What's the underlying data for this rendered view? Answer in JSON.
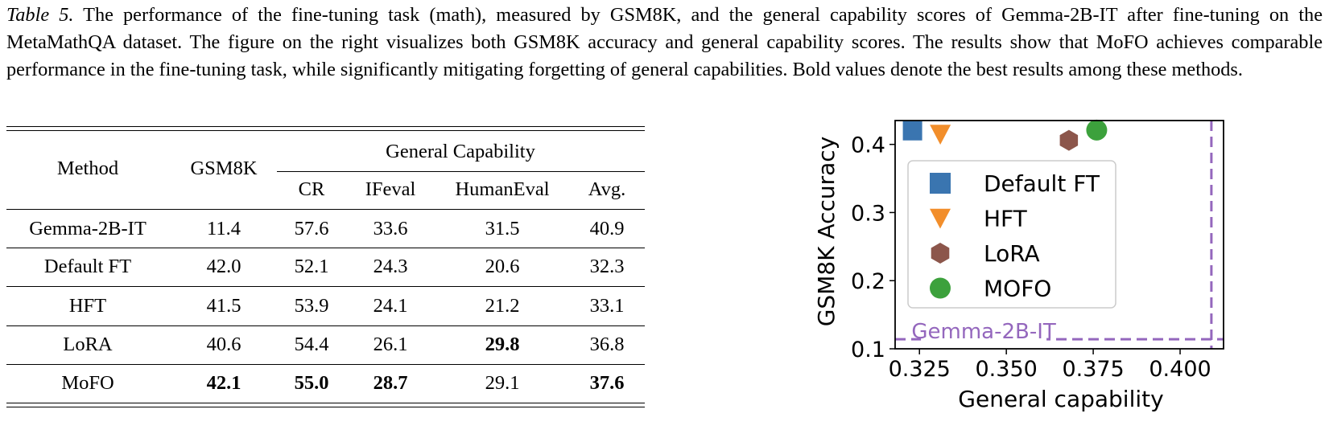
{
  "caption": {
    "label": "Table 5.",
    "text": " The performance of the fine-tuning task (math), measured by GSM8K, and the general capability scores of Gemma-2B-IT after fine-tuning on the MetaMathQA dataset. The figure on the right visualizes both GSM8K accuracy and general capability scores. The results show that MoFO achieves comparable performance in the fine-tuning task, while significantly mitigating forgetting of general capabilities. Bold values denote the best results among these methods."
  },
  "table": {
    "headers": {
      "method": "Method",
      "gsm8k": "GSM8K",
      "group": "General Capability",
      "cr": "CR",
      "ifeval": "IFeval",
      "humaneval": "HumanEval",
      "avg": "Avg."
    },
    "rows": [
      {
        "method": "Gemma-2B-IT",
        "gsm8k": "11.4",
        "cr": "57.6",
        "ifeval": "33.6",
        "humaneval": "31.5",
        "avg": "40.9"
      },
      {
        "method": "Default FT",
        "gsm8k": "42.0",
        "cr": "52.1",
        "ifeval": "24.3",
        "humaneval": "20.6",
        "avg": "32.3"
      },
      {
        "method": "HFT",
        "gsm8k": "41.5",
        "cr": "53.9",
        "ifeval": "24.1",
        "humaneval": "21.2",
        "avg": "33.1"
      },
      {
        "method": "LoRA",
        "gsm8k": "40.6",
        "cr": "54.4",
        "ifeval": "26.1",
        "humaneval": "29.8",
        "avg": "36.8"
      },
      {
        "method": "MoFO",
        "gsm8k": "42.1",
        "cr": "55.0",
        "ifeval": "28.7",
        "humaneval": "29.1",
        "avg": "37.6"
      }
    ],
    "bold": [
      [
        false,
        false,
        false,
        false,
        false,
        false
      ],
      [
        false,
        false,
        false,
        false,
        false,
        false
      ],
      [
        false,
        false,
        false,
        false,
        false,
        false
      ],
      [
        false,
        false,
        false,
        false,
        true,
        false
      ],
      [
        false,
        true,
        true,
        true,
        false,
        true
      ]
    ]
  },
  "chart_data": {
    "type": "scatter",
    "xlabel": "General capability",
    "ylabel": "GSM8K Accuracy",
    "xlim": [
      0.318,
      0.4125
    ],
    "ylim": [
      0.1,
      0.435
    ],
    "xticks": [
      "0.325",
      "0.350",
      "0.375",
      "0.400"
    ],
    "yticks": [
      "0.1",
      "0.2",
      "0.3",
      "0.4"
    ],
    "grid": false,
    "legend_position": "center",
    "series": [
      {
        "name": "Default FT",
        "marker": "square",
        "color": "#3a75b0",
        "x": 0.323,
        "y": 0.42
      },
      {
        "name": "HFT",
        "marker": "triangle-down",
        "color": "#f28e2b",
        "x": 0.331,
        "y": 0.415
      },
      {
        "name": "LoRA",
        "marker": "hexagon",
        "color": "#8c564b",
        "x": 0.368,
        "y": 0.406
      },
      {
        "name": "MOFO",
        "marker": "circle",
        "color": "#3ca13c",
        "x": 0.376,
        "y": 0.421
      }
    ],
    "reference_lines": [
      {
        "orientation": "horizontal",
        "value": 0.114,
        "label": "Gemma-2B-IT",
        "color": "#9467bd",
        "style": "dashed"
      },
      {
        "orientation": "vertical",
        "value": 0.409,
        "color": "#9467bd",
        "style": "dashed"
      }
    ]
  }
}
